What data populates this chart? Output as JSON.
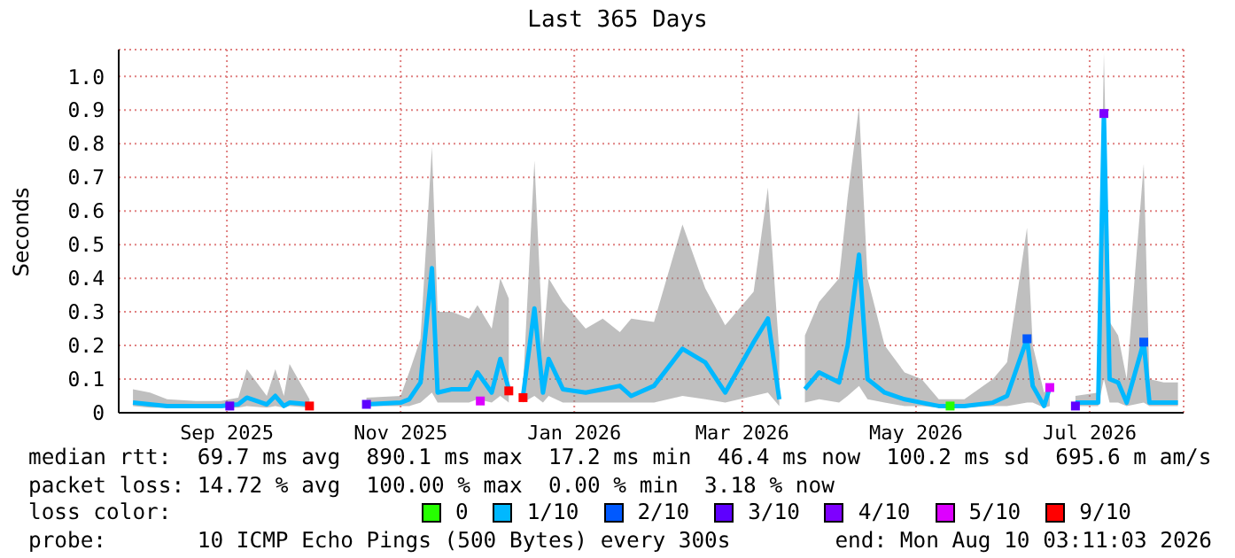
{
  "chart_data": {
    "type": "line",
    "title": "Last 365 Days",
    "ylabel": "Seconds",
    "xlim": [
      "2025-08-08",
      "2026-08-17"
    ],
    "xticks": [
      {
        "value": "2025-09-15",
        "label": "Sep 2025"
      },
      {
        "value": "2025-11-15",
        "label": "Nov 2025"
      },
      {
        "value": "2026-01-15",
        "label": "Jan 2026"
      },
      {
        "value": "2026-03-15",
        "label": "Mar 2026"
      },
      {
        "value": "2026-05-15",
        "label": "May 2026"
      },
      {
        "value": "2026-07-15",
        "label": "Jul 2026"
      }
    ],
    "ylim": [
      0,
      1.08
    ],
    "yticks": [
      0.0,
      {
        "value": 0.1,
        "label": "0.1"
      },
      {
        "value": 0.2,
        "label": "0.2"
      },
      {
        "value": 0.3,
        "label": "0.3"
      },
      {
        "value": 0.4,
        "label": "0.4"
      },
      {
        "value": 0.5,
        "label": "0.5"
      },
      {
        "value": 0.6,
        "label": "0.6"
      },
      {
        "value": 0.7,
        "label": "0.7"
      },
      {
        "value": 0.8,
        "label": "0.8"
      },
      {
        "value": 0.9,
        "label": "0.9"
      },
      {
        "value": 1.0,
        "label": "1.0"
      }
    ],
    "grid": true,
    "legend": "bottom",
    "legend_title": "loss color:",
    "annotations": [
      "median rtt:  69.7 ms avg  890.1 ms max  17.2 ms min  46.4 ms now  100.2 ms sd  695.6 m am/s",
      "packet loss: 14.72 % avg  100.00 % max  0.00 % min  3.18 % now",
      "probe:       10 ICMP Echo Pings (500 Bytes) every 300s",
      "end: Mon Aug 10 03:11:03 2026"
    ],
    "series": [
      {
        "name": "0",
        "type": "scatter",
        "marker": "square",
        "color": "#26ff00",
        "x": [
          "2026-05-27"
        ],
        "values": [
          0.02
        ]
      },
      {
        "name": "1/10",
        "color": "#00b8ff",
        "x": [
          "2025-08-13",
          "2025-08-19",
          "2025-08-25",
          "2025-09-04",
          "2025-09-13",
          "2025-09-19",
          "2025-09-22",
          "2025-09-29",
          "2025-10-02",
          "2025-10-05",
          "2025-10-07",
          "2025-10-14",
          "2025-10-24",
          "2025-11-03",
          "2025-11-15",
          "2025-11-18",
          "2025-11-22",
          "2025-11-26",
          "2025-11-28",
          "2025-12-03",
          "2025-12-09",
          "2025-12-12",
          "2025-12-17",
          "2025-12-20",
          "2025-12-23",
          "2025-12-26",
          "2025-12-28",
          "2026-01-01",
          "2026-01-04",
          "2026-01-06",
          "2026-01-11",
          "2026-01-19",
          "2026-01-25",
          "2026-01-31",
          "2026-02-04",
          "2026-02-12",
          "2026-02-22",
          "2026-03-02",
          "2026-03-09",
          "2026-03-19",
          "2026-03-24",
          "2026-03-28",
          "2026-04-02",
          "2026-04-06",
          "2026-04-11",
          "2026-04-18",
          "2026-04-21",
          "2026-04-25",
          "2026-04-28",
          "2026-05-04",
          "2026-05-11",
          "2026-05-17",
          "2026-05-23",
          "2026-06-01",
          "2026-06-11",
          "2026-06-16",
          "2026-06-23",
          "2026-06-25",
          "2026-06-29",
          "2026-07-01",
          "2026-07-06",
          "2026-07-10",
          "2026-07-18",
          "2026-07-20",
          "2026-07-22",
          "2026-07-25",
          "2026-07-28",
          "2026-08-03",
          "2026-08-05",
          "2026-08-10",
          "2026-08-15"
        ],
        "values": [
          0.03,
          0.025,
          0.02,
          0.02,
          0.02,
          0.025,
          0.045,
          0.025,
          0.05,
          0.02,
          0.03,
          0.025,
          null,
          0.025,
          0.03,
          0.04,
          0.09,
          0.43,
          0.06,
          0.07,
          0.07,
          0.12,
          0.06,
          0.16,
          0.07,
          null,
          0.05,
          0.31,
          0.06,
          0.16,
          0.07,
          0.06,
          0.07,
          0.08,
          0.05,
          0.08,
          0.19,
          0.15,
          0.06,
          0.21,
          0.28,
          0.04,
          null,
          0.07,
          0.12,
          0.09,
          0.2,
          0.47,
          0.1,
          0.06,
          0.04,
          0.03,
          0.02,
          0.02,
          0.03,
          0.05,
          0.22,
          0.08,
          0.02,
          0.075,
          null,
          0.03,
          0.03,
          0.89,
          0.1,
          0.09,
          0.03,
          0.21,
          0.03,
          0.03,
          0.03
        ],
        "lower": [
          0.02,
          0.015,
          0.015,
          0.015,
          0.015,
          0.015,
          0.02,
          0.015,
          0.02,
          0.015,
          0.02,
          0.015,
          null,
          0.02,
          0.02,
          0.02,
          0.03,
          0.06,
          0.03,
          0.03,
          0.03,
          0.04,
          0.03,
          0.05,
          0.03,
          null,
          0.03,
          0.05,
          0.03,
          0.05,
          0.03,
          0.03,
          0.03,
          0.03,
          0.03,
          0.03,
          0.05,
          0.04,
          0.03,
          0.05,
          0.06,
          0.02,
          null,
          0.03,
          0.04,
          0.03,
          0.05,
          0.08,
          0.04,
          0.03,
          0.02,
          0.02,
          0.015,
          0.015,
          0.02,
          0.02,
          0.03,
          0.03,
          0.015,
          0.02,
          null,
          0.02,
          0.02,
          0.1,
          0.03,
          0.03,
          0.02,
          0.03,
          0.02,
          0.02,
          0.02
        ],
        "upper": [
          0.07,
          0.06,
          0.04,
          0.035,
          0.035,
          0.045,
          0.13,
          0.05,
          0.13,
          0.05,
          0.145,
          0.04,
          null,
          0.045,
          0.05,
          0.12,
          0.22,
          0.79,
          0.3,
          0.3,
          0.28,
          0.32,
          0.25,
          0.4,
          0.34,
          null,
          0.08,
          0.75,
          0.2,
          0.4,
          0.33,
          0.25,
          0.28,
          0.24,
          0.28,
          0.27,
          0.56,
          0.37,
          0.26,
          0.36,
          0.67,
          0.18,
          null,
          0.23,
          0.33,
          0.4,
          0.64,
          0.91,
          0.4,
          0.2,
          0.12,
          0.1,
          0.04,
          0.04,
          0.1,
          0.15,
          0.55,
          0.2,
          0.06,
          0.08,
          null,
          0.05,
          0.06,
          1.07,
          0.27,
          0.23,
          0.1,
          0.74,
          0.1,
          0.09,
          0.09
        ]
      },
      {
        "name": "2/10",
        "type": "scatter",
        "marker": "square",
        "color": "#0059ff",
        "x": [
          "2026-06-23",
          "2026-08-03"
        ],
        "values": [
          0.22,
          0.21
        ]
      },
      {
        "name": "3/10",
        "type": "scatter",
        "marker": "square",
        "color": "#5e00ff",
        "x": [
          "2025-09-16",
          "2025-11-03",
          "2026-07-10"
        ],
        "values": [
          0.02,
          0.025,
          0.02
        ]
      },
      {
        "name": "4/10",
        "type": "scatter",
        "marker": "square",
        "color": "#7e00ff",
        "x": [
          "2026-07-20"
        ],
        "values": [
          0.89
        ]
      },
      {
        "name": "5/10",
        "type": "scatter",
        "marker": "square",
        "color": "#dd00ff",
        "x": [
          "2025-12-13",
          "2026-07-01"
        ],
        "values": [
          0.035,
          0.075
        ]
      },
      {
        "name": "9/10",
        "type": "scatter",
        "marker": "square",
        "color": "#ff0000",
        "x": [
          "2025-10-14",
          "2025-12-23",
          "2025-12-28"
        ],
        "values": [
          0.02,
          0.065,
          0.045
        ]
      }
    ]
  }
}
